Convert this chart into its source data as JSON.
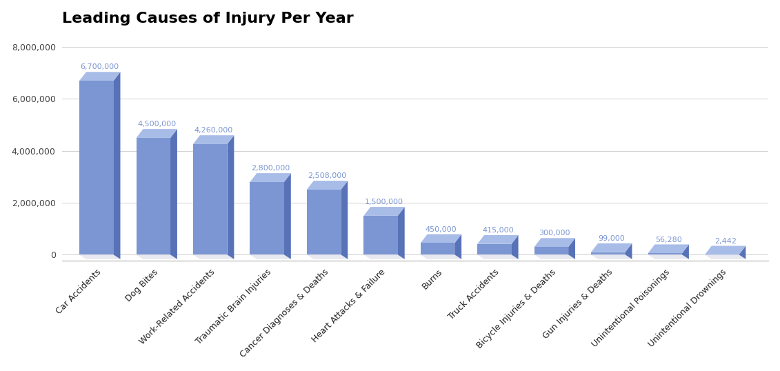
{
  "title": "Leading Causes of Injury Per Year",
  "categories": [
    "Car Accidents",
    "Dog Bites",
    "Work-Related Accidents",
    "Traumatic Brain Injuries",
    "Cancer Diagnoses & Deaths",
    "Heart Attacks & Failure",
    "Burns",
    "Truck Accidents",
    "Bicycle Injuries & Deaths",
    "Gun Injuries & Deaths",
    "Unintentional Poisonings",
    "Unintentional Drownings"
  ],
  "values": [
    6700000,
    4500000,
    4260000,
    2800000,
    2508000,
    1500000,
    450000,
    415000,
    300000,
    99000,
    56280,
    2442
  ],
  "bar_color_face": "#7B96D2",
  "bar_color_side": "#5872B8",
  "bar_color_top": "#A8BCE8",
  "label_color": "#7B96D2",
  "background_color": "#ffffff",
  "grid_color": "#d0d0d0",
  "shadow_color": "#e8e8f0",
  "title_fontsize": 16,
  "tick_fontsize": 9,
  "value_fontsize": 8,
  "ylim": [
    0,
    8500000
  ],
  "yticks": [
    0,
    2000000,
    4000000,
    6000000,
    8000000
  ]
}
